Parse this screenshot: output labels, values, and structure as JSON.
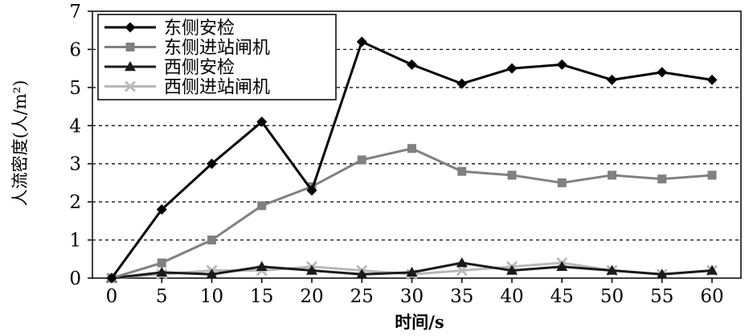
{
  "chart_data": {
    "type": "line",
    "xlabel": "时间/s",
    "ylabel": "人流密度(人/m²)",
    "x": [
      0,
      5,
      10,
      15,
      20,
      25,
      30,
      35,
      40,
      45,
      50,
      55,
      60
    ],
    "x_ticks": [
      "0",
      "5",
      "10",
      "15",
      "20",
      "25",
      "30",
      "35",
      "40",
      "45",
      "50",
      "55",
      "60"
    ],
    "y_ticks": [
      "0",
      "1",
      "2",
      "3",
      "4",
      "5",
      "6",
      "7"
    ],
    "xlim": [
      0,
      60
    ],
    "ylim": [
      0,
      7
    ],
    "grid": "horizontal-dashed",
    "legend_position": "top-left",
    "series": [
      {
        "name": "东侧安检",
        "color": "#000000",
        "marker": "diamond",
        "values": [
          0,
          1.8,
          3.0,
          4.1,
          2.3,
          6.2,
          5.6,
          5.1,
          5.5,
          5.6,
          5.2,
          5.4,
          5.2
        ]
      },
      {
        "name": "东侧进站闸机",
        "color": "#808080",
        "marker": "square",
        "values": [
          0,
          0.4,
          1.0,
          1.9,
          2.4,
          3.1,
          3.4,
          2.8,
          2.7,
          2.5,
          2.7,
          2.6,
          2.7
        ]
      },
      {
        "name": "西侧安检",
        "color": "#1a1a1a",
        "marker": "triangle",
        "values": [
          0,
          0.15,
          0.1,
          0.3,
          0.2,
          0.1,
          0.15,
          0.4,
          0.2,
          0.3,
          0.2,
          0.1,
          0.2
        ]
      },
      {
        "name": "西侧进站闸机",
        "color": "#b8b8b8",
        "marker": "x",
        "values": [
          0,
          0.1,
          0.2,
          0.2,
          0.3,
          0.2,
          0.1,
          0.2,
          0.3,
          0.4,
          0.2,
          0.1,
          0.2
        ]
      }
    ]
  }
}
